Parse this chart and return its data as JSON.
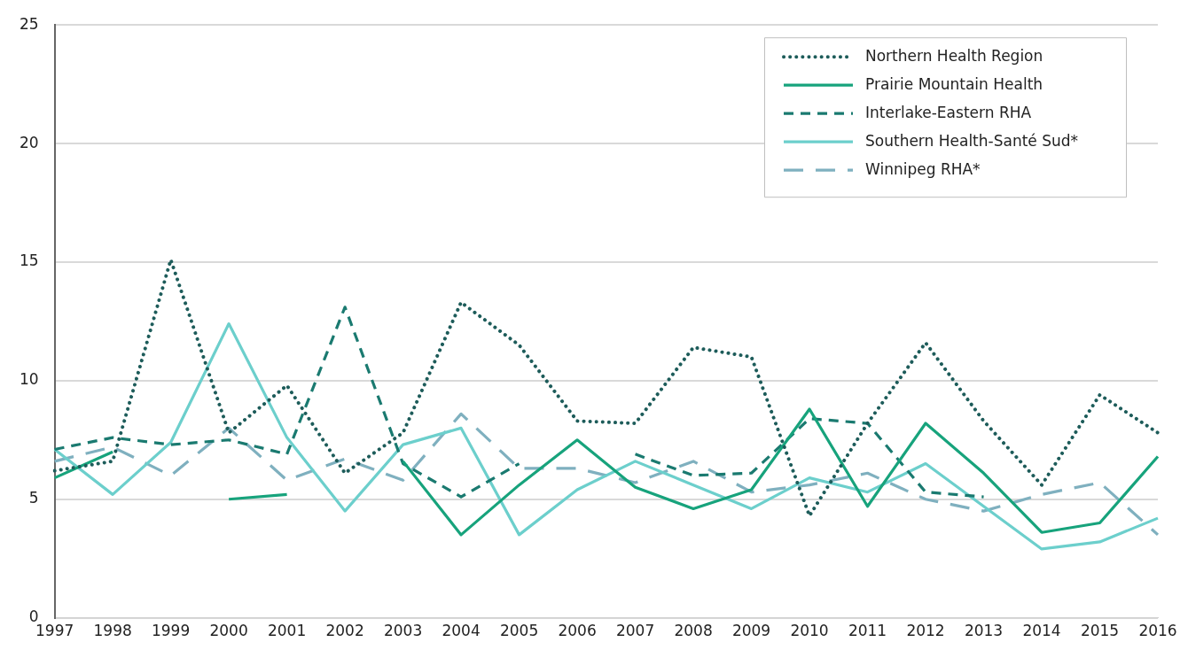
{
  "chart_data": {
    "type": "line",
    "categories": [
      "1997",
      "1998",
      "1999",
      "2000",
      "2001",
      "2002",
      "2003",
      "2004",
      "2005",
      "2006",
      "2007",
      "2008",
      "2009",
      "2010",
      "2011",
      "2012",
      "2013",
      "2014",
      "2015",
      "2016"
    ],
    "ylim": [
      0,
      25
    ],
    "yticks": [
      0,
      5,
      10,
      15,
      20,
      25
    ],
    "grid": "y",
    "legend": "top right",
    "marker": "none",
    "series": [
      {
        "name": "Northern Health Region",
        "color": "#1d5c5a",
        "line_style": "dotted",
        "values": [
          6.2,
          6.6,
          15.1,
          7.8,
          9.8,
          6.1,
          7.8,
          13.3,
          11.5,
          8.3,
          8.2,
          11.4,
          11.0,
          4.3,
          8.2,
          11.6,
          8.3,
          5.6,
          9.4,
          7.8
        ]
      },
      {
        "name": "Prairie Mountain Health",
        "color": "#17a37c",
        "line_style": "solid",
        "values": [
          5.9,
          7.0,
          null,
          5.0,
          5.2,
          null,
          6.6,
          3.5,
          5.6,
          7.5,
          5.5,
          4.6,
          5.4,
          8.8,
          4.7,
          8.2,
          6.1,
          3.6,
          4.0,
          6.8
        ]
      },
      {
        "name": "Interlake-Eastern RHA",
        "color": "#1a7a70",
        "line_style": "dashed",
        "values": [
          7.1,
          7.6,
          7.3,
          7.5,
          6.9,
          13.1,
          6.5,
          5.1,
          6.5,
          null,
          6.9,
          6.0,
          6.1,
          8.4,
          8.2,
          5.3,
          5.1,
          null,
          null,
          null
        ]
      },
      {
        "name": "Southern Health-Santé Sud*",
        "color": "#6ccfcc",
        "line_style": "solid",
        "values": [
          7.1,
          5.2,
          7.4,
          12.4,
          7.6,
          4.5,
          7.3,
          8.0,
          3.5,
          5.4,
          6.6,
          5.6,
          4.6,
          5.9,
          5.3,
          6.5,
          4.7,
          2.9,
          3.2,
          4.2
        ]
      },
      {
        "name": "Winnipeg RHA*",
        "color": "#7fb0bf",
        "line_style": "longdash",
        "values": [
          6.6,
          7.2,
          6.0,
          8.0,
          5.8,
          6.7,
          5.8,
          8.6,
          6.3,
          6.3,
          5.7,
          6.6,
          5.3,
          5.6,
          6.1,
          5.0,
          4.5,
          5.2,
          5.7,
          3.5
        ]
      }
    ]
  }
}
